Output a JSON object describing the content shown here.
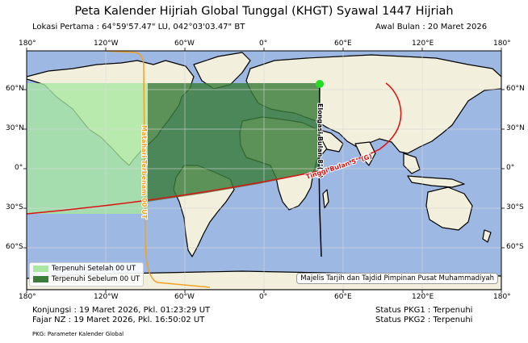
{
  "title": "Peta Kalender Hijriah Global Tunggal (KHGT) Syawal 1447 Hijriah",
  "location_label": "Lokasi Pertama : 64°59'57.47\" LU, 042°03'03.47\" BT",
  "month_start": "Awal Bulan       : 20 Maret 2026",
  "conjunction": "Konjungsi : 19 Maret 2026, Pkl.  01:23:29 UT",
  "fajr_nz": "Fajar NZ   : 19 Maret 2026, Pkl.  16:50:02 UT",
  "status_pkg1": "Status PKG1 : Terpenuhi",
  "status_pkg2": "Status PKG2 : Terpenuhi",
  "footnote": "PKG: Parameter Kalender Global",
  "credit": "Majelis Tarjih dan Tajdid Pimpinan Pusat Muhammadiyah",
  "legend": [
    {
      "label": "Terpenuhi Setelah 00 UT",
      "color": "#a8e8a0"
    },
    {
      "label": "Terpenuhi Sebelum 00 UT",
      "color": "#3b7d3b"
    }
  ],
  "curve_labels": {
    "sunset": "Matahari Terbenam 00 UT",
    "elongation": "Elongasi Bulan 8°(G)",
    "altitude": "Tinggi Bulan 5° (G)"
  },
  "axes": {
    "lon_ticks": [
      "180°",
      "120°W",
      "60°W",
      "0°",
      "60°E",
      "120°E",
      "180°"
    ],
    "lat_ticks": [
      "60°N",
      "30°N",
      "0°",
      "30°S",
      "60°S"
    ]
  },
  "colors": {
    "ocean": "#9db8e3",
    "land": "#f2efdc",
    "region_after": "#a8e8a0",
    "region_before": "#3b7d3b",
    "sunset_line": "#f4a020",
    "altitude_line": "#dd1111",
    "elongation_line": "#000000",
    "marker": "#22dd22"
  },
  "first_location_marker": {
    "lat": 64.9993,
    "lon": 42.051
  }
}
